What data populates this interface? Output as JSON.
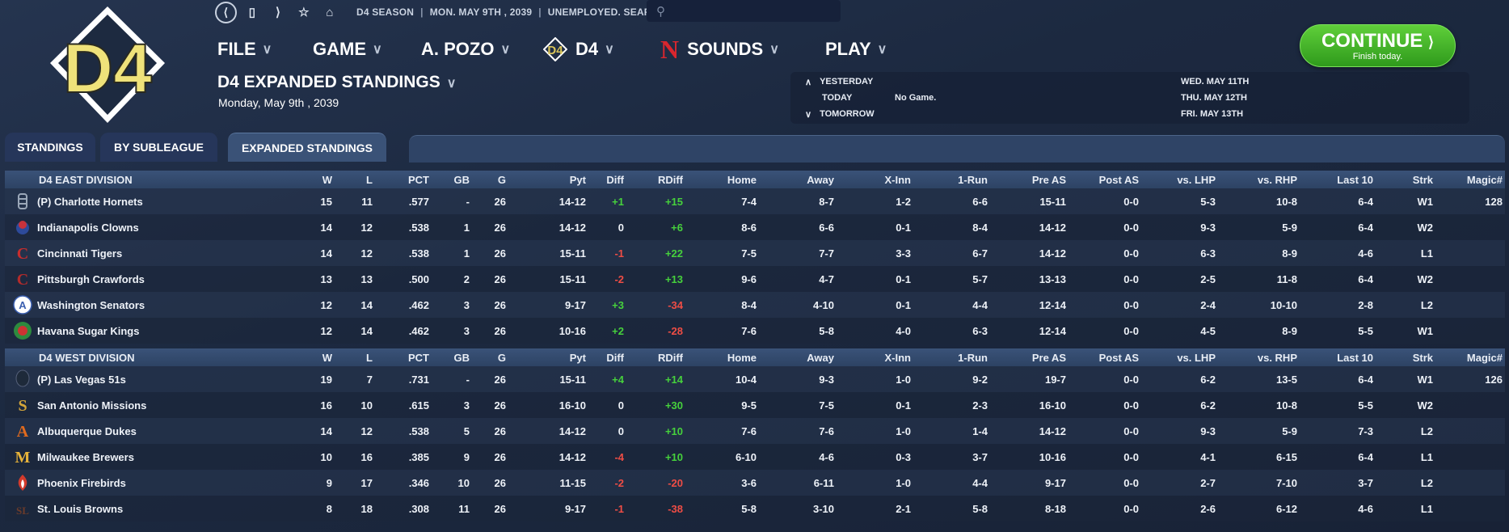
{
  "topbar": {
    "season": "D4 SEASON",
    "date": "MON. MAY 9TH , 2039",
    "status": "UNEMPLOYED. SEARCH JOBS...",
    "search_value": ""
  },
  "menu": {
    "file": "FILE",
    "game": "GAME",
    "manager": "A. POZO",
    "league": "D4",
    "team": "SOUNDS",
    "play": "PLAY"
  },
  "page": {
    "title": "D4 EXPANDED STANDINGS",
    "date": "Monday, May 9th , 2039"
  },
  "continue": {
    "label": "CONTINUE",
    "sub": "Finish today."
  },
  "schedule": {
    "yesterday": "YESTERDAY",
    "today": "TODAY",
    "today_game": "No Game.",
    "tomorrow": "TOMORROW",
    "d1": "WED. MAY 11TH",
    "d2": "THU. MAY 12TH",
    "d3": "FRI. MAY 13TH"
  },
  "tabs": [
    "STANDINGS",
    "BY SUBLEAGUE",
    "EXPANDED STANDINGS"
  ],
  "columns": [
    "W",
    "L",
    "PCT",
    "GB",
    "G",
    "Pyt",
    "Diff",
    "RDiff",
    "Home",
    "Away",
    "X-Inn",
    "1-Run",
    "Pre AS",
    "Post AS",
    "vs. LHP",
    "vs. RHP",
    "Last 10",
    "Strk",
    "Magic#"
  ],
  "divisions": [
    {
      "name": "D4 EAST DIVISION",
      "teams": [
        {
          "name": "(P) Charlotte Hornets",
          "icon": "hornet",
          "color": "#9aa7b8",
          "vals": [
            "15",
            "11",
            ".577",
            "-",
            "26",
            "14-12",
            "+1",
            "+15",
            "7-4",
            "8-7",
            "1-2",
            "6-6",
            "15-11",
            "0-0",
            "5-3",
            "10-8",
            "6-4",
            "W1",
            "128"
          ]
        },
        {
          "name": "Indianapolis Clowns",
          "icon": "clown",
          "color": "#c8323b",
          "vals": [
            "14",
            "12",
            ".538",
            "1",
            "26",
            "14-12",
            "0",
            "+6",
            "8-6",
            "6-6",
            "0-1",
            "8-4",
            "14-12",
            "0-0",
            "9-3",
            "5-9",
            "6-4",
            "W2",
            ""
          ]
        },
        {
          "name": "Cincinnati Tigers",
          "icon": "letter-c",
          "color": "#c82d2d",
          "vals": [
            "14",
            "12",
            ".538",
            "1",
            "26",
            "15-11",
            "-1",
            "+22",
            "7-5",
            "7-7",
            "3-3",
            "6-7",
            "14-12",
            "0-0",
            "6-3",
            "8-9",
            "4-6",
            "L1",
            ""
          ]
        },
        {
          "name": "Pittsburgh Crawfords",
          "icon": "letter-c",
          "color": "#b22b2b",
          "vals": [
            "13",
            "13",
            ".500",
            "2",
            "26",
            "15-11",
            "-2",
            "+13",
            "9-6",
            "4-7",
            "0-1",
            "5-7",
            "13-13",
            "0-0",
            "2-5",
            "11-8",
            "6-4",
            "W2",
            ""
          ]
        },
        {
          "name": "Washington Senators",
          "icon": "senator",
          "color": "#3b5fb0",
          "vals": [
            "12",
            "14",
            ".462",
            "3",
            "26",
            "9-17",
            "+3",
            "-34",
            "8-4",
            "4-10",
            "0-1",
            "4-4",
            "12-14",
            "0-0",
            "2-4",
            "10-10",
            "2-8",
            "L2",
            ""
          ]
        },
        {
          "name": "Havana Sugar Kings",
          "icon": "sugarking",
          "color": "#2d8a3e",
          "vals": [
            "12",
            "14",
            ".462",
            "3",
            "26",
            "10-16",
            "+2",
            "-28",
            "7-6",
            "5-8",
            "4-0",
            "6-3",
            "12-14",
            "0-0",
            "4-5",
            "8-9",
            "5-5",
            "W1",
            ""
          ]
        }
      ]
    },
    {
      "name": "D4 WEST DIVISION",
      "teams": [
        {
          "name": "(P) Las Vegas 51s",
          "icon": "alien",
          "color": "#1e2a3a",
          "vals": [
            "19",
            "7",
            ".731",
            "-",
            "26",
            "15-11",
            "+4",
            "+14",
            "10-4",
            "9-3",
            "1-0",
            "9-2",
            "19-7",
            "0-0",
            "6-2",
            "13-5",
            "6-4",
            "W1",
            "126"
          ]
        },
        {
          "name": "San Antonio Missions",
          "icon": "letter-sa",
          "color": "#d4a63a",
          "vals": [
            "16",
            "10",
            ".615",
            "3",
            "26",
            "16-10",
            "0",
            "+30",
            "9-5",
            "7-5",
            "0-1",
            "2-3",
            "16-10",
            "0-0",
            "6-2",
            "10-8",
            "5-5",
            "W2",
            ""
          ]
        },
        {
          "name": "Albuquerque Dukes",
          "icon": "letter-a",
          "color": "#e06a1e",
          "vals": [
            "14",
            "12",
            ".538",
            "5",
            "26",
            "14-12",
            "0",
            "+10",
            "7-6",
            "7-6",
            "1-0",
            "1-4",
            "14-12",
            "0-0",
            "9-3",
            "5-9",
            "7-3",
            "L2",
            ""
          ]
        },
        {
          "name": "Milwaukee Brewers",
          "icon": "letter-m",
          "color": "#e7b33a",
          "vals": [
            "10",
            "16",
            ".385",
            "9",
            "26",
            "14-12",
            "-4",
            "+10",
            "6-10",
            "4-6",
            "0-3",
            "3-7",
            "10-16",
            "0-0",
            "4-1",
            "6-15",
            "6-4",
            "L1",
            ""
          ]
        },
        {
          "name": "Phoenix Firebirds",
          "icon": "firebird",
          "color": "#d23a2c",
          "vals": [
            "9",
            "17",
            ".346",
            "10",
            "26",
            "11-15",
            "-2",
            "-20",
            "3-6",
            "6-11",
            "1-0",
            "4-4",
            "9-17",
            "0-0",
            "2-7",
            "7-10",
            "3-7",
            "L2",
            ""
          ]
        },
        {
          "name": "St. Louis Browns",
          "icon": "letter-sl",
          "color": "#6b3b2a",
          "vals": [
            "8",
            "18",
            ".308",
            "11",
            "26",
            "9-17",
            "-1",
            "-38",
            "5-8",
            "3-10",
            "2-1",
            "5-8",
            "8-18",
            "0-0",
            "2-6",
            "6-12",
            "4-6",
            "L1",
            ""
          ]
        }
      ]
    }
  ]
}
